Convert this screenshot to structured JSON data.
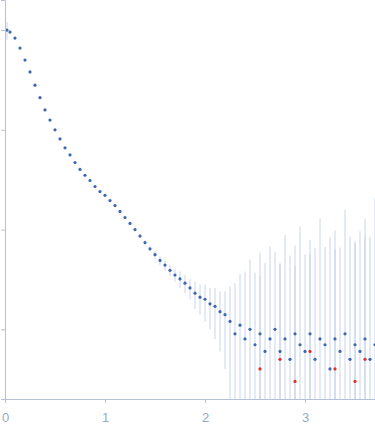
{
  "chart_data": {
    "type": "scatter",
    "log": "y",
    "tick_labels": "x",
    "xlim": [
      0,
      3.7
    ],
    "xticks": [
      0,
      1,
      2,
      3
    ],
    "ylim": [
      0.0002,
      2
    ],
    "yticks": [
      0.001,
      0.01,
      0.1,
      1
    ],
    "series": [
      {
        "color": "#3d67b1",
        "marker": "circle",
        "x": [
          0.02,
          0.05,
          0.1,
          0.15,
          0.2,
          0.25,
          0.3,
          0.35,
          0.4,
          0.45,
          0.5,
          0.55,
          0.6,
          0.65,
          0.7,
          0.75,
          0.8,
          0.85,
          0.9,
          0.95,
          1.0,
          1.05,
          1.1,
          1.15,
          1.2,
          1.25,
          1.3,
          1.35,
          1.4,
          1.45,
          1.5,
          1.55,
          1.6,
          1.65,
          1.7,
          1.75,
          1.8,
          1.85,
          1.9,
          1.95,
          2.0,
          2.05,
          2.1,
          2.15,
          2.2,
          2.25,
          2.3,
          2.35,
          2.4,
          2.45,
          2.5,
          2.55,
          2.6,
          2.65,
          2.7,
          2.75,
          2.8,
          2.85,
          2.9,
          2.95,
          3.0,
          3.05,
          3.1,
          3.15,
          3.2,
          3.25,
          3.3,
          3.35,
          3.4,
          3.45,
          3.5,
          3.55,
          3.6,
          3.65,
          3.7
        ],
        "values": [
          1.0,
          0.955,
          0.83,
          0.66,
          0.5,
          0.38,
          0.28,
          0.21,
          0.158,
          0.125,
          0.1,
          0.081,
          0.066,
          0.056,
          0.047,
          0.04,
          0.035,
          0.031,
          0.027,
          0.024,
          0.022,
          0.0195,
          0.0174,
          0.0152,
          0.0132,
          0.0115,
          0.01,
          0.0086,
          0.0074,
          0.0064,
          0.0056,
          0.0049,
          0.0044,
          0.0039,
          0.0035,
          0.0032,
          0.0029,
          0.0026,
          0.0023,
          0.0021,
          0.002,
          0.0018,
          0.0017,
          0.0015,
          0.0014,
          0.0012,
          0.0009,
          0.0011,
          0.0008,
          0.001,
          0.0007,
          0.0009,
          0.0006,
          0.0008,
          0.001,
          0.0006,
          0.0008,
          0.0005,
          0.0009,
          0.0007,
          0.0006,
          0.0009,
          0.0005,
          0.0008,
          0.0007,
          0.0004,
          0.0008,
          0.0006,
          0.0009,
          0.0005,
          0.0007,
          0.0006,
          0.0008,
          0.0005,
          0.0007
        ],
        "errors": [
          0.2,
          0.05,
          0.01,
          0.005,
          0.003,
          0.002,
          0.0015,
          0.001,
          0.0008,
          0.0007,
          0.0006,
          0.0005,
          0.0005,
          0.0004,
          0.0004,
          0.0004,
          0.0004,
          0.0004,
          0.0004,
          0.0004,
          0.0004,
          0.0004,
          0.0004,
          0.0004,
          0.0004,
          0.0004,
          0.0004,
          0.0004,
          0.0004,
          0.0004,
          0.0005,
          0.0005,
          0.0005,
          0.0005,
          0.0005,
          0.0006,
          0.0006,
          0.0006,
          0.0007,
          0.0007,
          0.0008,
          0.0008,
          0.0009,
          0.0009,
          0.001,
          0.0015,
          0.002,
          0.0025,
          0.003,
          0.004,
          0.003,
          0.005,
          0.004,
          0.006,
          0.005,
          0.004,
          0.008,
          0.005,
          0.006,
          0.01,
          0.005,
          0.007,
          0.006,
          0.012,
          0.006,
          0.008,
          0.009,
          0.006,
          0.015,
          0.008,
          0.007,
          0.009,
          0.012,
          0.008,
          0.02
        ]
      },
      {
        "color": "#e0302b",
        "marker": "circle",
        "x": [
          2.55,
          2.75,
          2.9,
          3.05,
          3.3,
          3.5,
          3.6
        ],
        "values": [
          0.0004,
          0.0005,
          0.0003,
          0.0006,
          0.0004,
          0.0003,
          0.0005
        ],
        "errors": [
          0.003,
          0.004,
          0.004,
          0.005,
          0.006,
          0.007,
          0.008
        ]
      }
    ]
  }
}
